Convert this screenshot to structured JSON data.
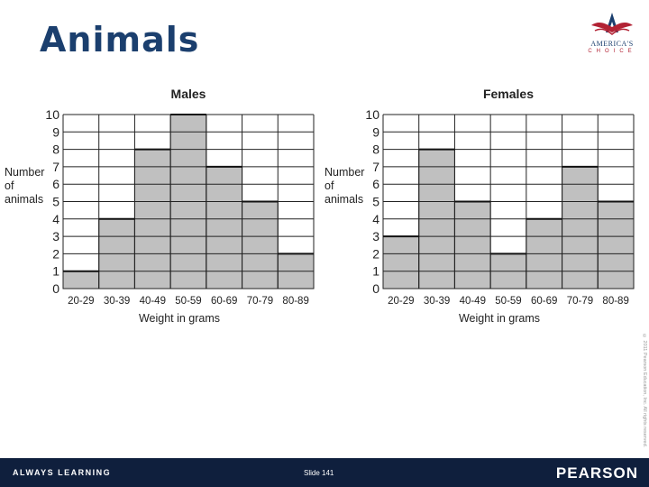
{
  "slide": {
    "title": "Animals",
    "slide_label": "Slide 141",
    "copyright": "© 2011 Pearson Education, Inc. All rights reserved."
  },
  "logo": {
    "word": "AMERICA'S",
    "sub": "CHOICE"
  },
  "footer": {
    "left": "ALWAYS LEARNING",
    "brand": "PEARSON"
  },
  "colors": {
    "title": "#1b3f6e",
    "bar": "#c0c0c0",
    "footer": "#0f1f3d"
  },
  "chart_data": [
    {
      "type": "bar",
      "title": "Males",
      "xlabel": "Weight in grams",
      "ylabel_lines": [
        "Number",
        "of",
        "animals"
      ],
      "categories": [
        "20-29",
        "30-39",
        "40-49",
        "50-59",
        "60-69",
        "70-79",
        "80-89"
      ],
      "values": [
        1,
        4,
        8,
        10,
        7,
        5,
        2
      ],
      "yticks": [
        "0",
        "1",
        "2",
        "3",
        "4",
        "5",
        "6",
        "7",
        "8",
        "9",
        "10"
      ],
      "ylim": [
        0,
        10
      ],
      "grid": true
    },
    {
      "type": "bar",
      "title": "Females",
      "xlabel": "Weight in grams",
      "ylabel_lines": [
        "Number",
        "of",
        "animals"
      ],
      "categories": [
        "20-29",
        "30-39",
        "40-49",
        "50-59",
        "60-69",
        "70-79",
        "80-89"
      ],
      "values": [
        3,
        8,
        5,
        2,
        4,
        7,
        5
      ],
      "yticks": [
        "0",
        "1",
        "2",
        "3",
        "4",
        "5",
        "6",
        "7",
        "8",
        "9",
        "10"
      ],
      "ylim": [
        0,
        10
      ],
      "grid": true
    }
  ]
}
